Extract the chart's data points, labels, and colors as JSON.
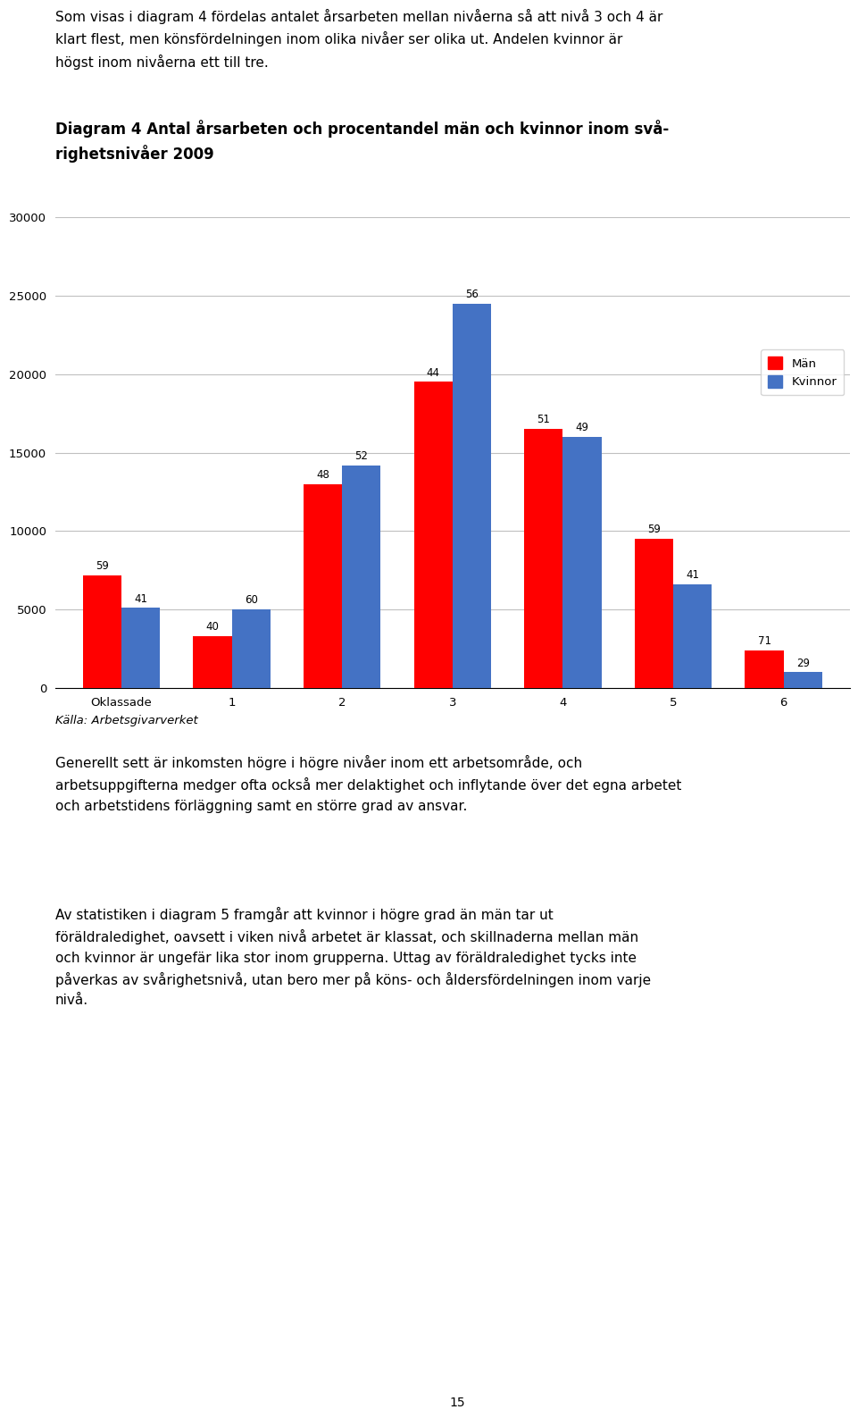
{
  "title_line1": "Diagram 4 Antal årsarbeten och procentandel män och kvinnor inom svå-",
  "title_line2": "righetsnivåer 2009",
  "categories": [
    "Oklassade",
    "1",
    "2",
    "3",
    "4",
    "5",
    "6"
  ],
  "man_values": [
    7200,
    3300,
    13000,
    19500,
    16500,
    9500,
    2400
  ],
  "kvinna_values": [
    5100,
    5000,
    14200,
    24500,
    16000,
    6600,
    1000
  ],
  "man_labels": [
    "59",
    "40",
    "48",
    "44",
    "51",
    "59",
    "71"
  ],
  "kvinna_labels": [
    "41",
    "60",
    "52",
    "56",
    "49",
    "41",
    "29"
  ],
  "man_color": "#FF0000",
  "kvinna_color": "#4472C4",
  "ylim": [
    0,
    30000
  ],
  "yticks": [
    0,
    5000,
    10000,
    15000,
    20000,
    25000,
    30000
  ],
  "legend_man": "Män",
  "legend_kvinna": "Kvinnor",
  "source": "Källa: Arbetsgivarverket",
  "top_text": "Som visas i diagram 4 fördelas antalet årsarbeten mellan nivåerna så att nivå 3 och 4 är\nklart flest, men könsfördelningen inom olika nivåer ser olika ut. Andelen kvinnor är\nhögst inom nivåerna ett till tre.",
  "bottom_text1": "Generellt sett är inkomsten högre i högre nivåer inom ett arbetsområde, och arbetsuppgifterna medger ofta också mer delaktighet och inflytande över det egna arbetet och arbetstidens förläggning samt en större grad av ansvar.",
  "bottom_text2": "Av statistiken i diagram 5 framgår att kvinnor i högre grad än män tar ut föräldraledighet, oavsett i viken nivå arbetet är klassat, och skillnaderna mellan män och kvinnor är ungefär lika stor inom grupperna. Uttag av föräldraledighet tycks inte påverkas av svårighetsnivå, utan bero mer på köns- och åldersfördelningen inom varje nivå.",
  "page_number": "15",
  "fig_width": 9.6,
  "fig_height": 15.93,
  "dpi": 100,
  "bar_width": 0.35,
  "label_fontsize": 8.5,
  "axis_fontsize": 9.5,
  "legend_fontsize": 9.5,
  "title_fontsize": 12,
  "body_fontsize": 11,
  "source_fontsize": 9.5
}
